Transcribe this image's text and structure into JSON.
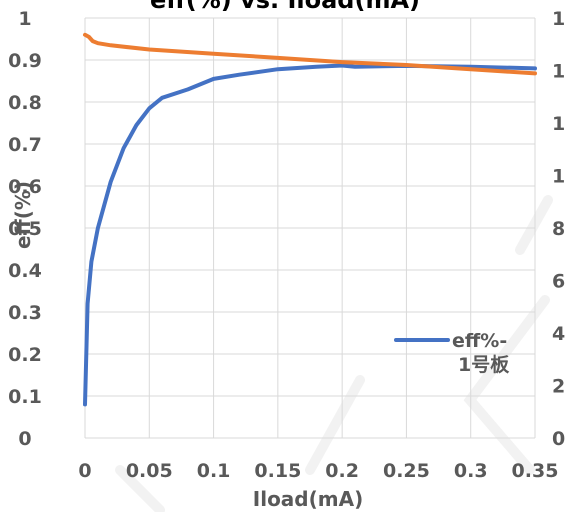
{
  "chart_data": {
    "type": "line",
    "title": "eff(%) vs. Iload(mA)",
    "xlabel": "Iload(mA)",
    "ylabel": "eff(%)",
    "xlim": [
      0,
      0.35
    ],
    "ylim": [
      0,
      1
    ],
    "x_ticks": [
      "0",
      "0.05",
      "0.1",
      "0.15",
      "0.2",
      "0.25",
      "0.3",
      "0.35"
    ],
    "y_ticks": [
      "0",
      "0.1",
      "0.2",
      "0.3",
      "0.4",
      "0.5",
      "0.6",
      "0.7",
      "0.8",
      "0.9",
      "1"
    ],
    "right_axis_partial_labels": [
      "0",
      "2",
      "4",
      "6",
      "8",
      "1",
      "1",
      "1",
      "1"
    ],
    "grid": true,
    "legend_position": "lower-right",
    "series": [
      {
        "name": "eff%-1号板",
        "color": "#4472c4",
        "x": [
          0,
          0.002,
          0.005,
          0.01,
          0.02,
          0.03,
          0.04,
          0.05,
          0.06,
          0.08,
          0.1,
          0.12,
          0.15,
          0.18,
          0.2,
          0.21,
          0.25,
          0.3,
          0.35
        ],
        "y": [
          0.08,
          0.32,
          0.42,
          0.5,
          0.61,
          0.69,
          0.745,
          0.785,
          0.81,
          0.83,
          0.855,
          0.865,
          0.878,
          0.884,
          0.887,
          0.884,
          0.886,
          0.884,
          0.88
        ]
      },
      {
        "color": "#ed7d31",
        "x": [
          0,
          0.003,
          0.006,
          0.01,
          0.02,
          0.05,
          0.1,
          0.15,
          0.2,
          0.25,
          0.3,
          0.35
        ],
        "y": [
          0.96,
          0.955,
          0.945,
          0.94,
          0.935,
          0.925,
          0.915,
          0.905,
          0.895,
          0.888,
          0.878,
          0.868
        ]
      }
    ]
  }
}
